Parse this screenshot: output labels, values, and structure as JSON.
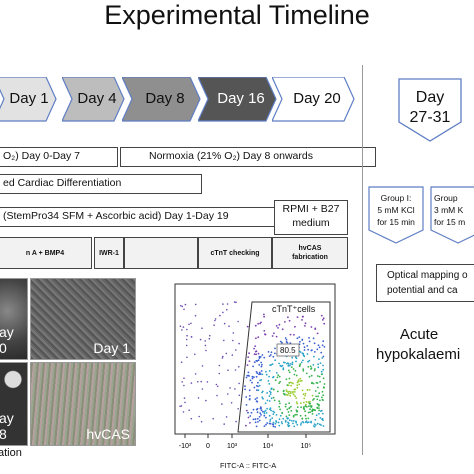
{
  "title": "Experimental Timeline",
  "timeline": [
    {
      "label": "Day 1",
      "fill": "#e2e2e2"
    },
    {
      "label": "Day 4",
      "fill": "#bdbdbd"
    },
    {
      "label": "Day 8",
      "fill": "#8f8f8f"
    },
    {
      "label": "Day 16",
      "fill": "#555555"
    },
    {
      "label": "Day 20",
      "fill": "#ffffff"
    }
  ],
  "bars": {
    "hypoxia": "O₂) Day 0-Day 7",
    "normoxia": "Normoxia (21% O₂) Day 8 onwards",
    "differentiation": "ed Cardiac Differentiation",
    "media": "(StemPro34 SFM + Ascorbic acid) Day 1-Day 19",
    "rpmi_line1": "RPMI + B27",
    "rpmi_line2": "medium"
  },
  "steps": [
    {
      "line1": "n A + BMP4",
      "line2": ""
    },
    {
      "line1": "IWR-1",
      "line2": ""
    },
    {
      "line1": "",
      "line2": ""
    },
    {
      "line1": "cTnT checking",
      "line2": ""
    },
    {
      "line1": "hvCAS",
      "line2": "fabrication"
    }
  ],
  "images": [
    {
      "label": "ay 0"
    },
    {
      "label": "Day 1"
    },
    {
      "label": "ay 8"
    },
    {
      "label": "hvCAS"
    }
  ],
  "images_caption": "ation",
  "flow": {
    "gate_label": "cTnT⁺cells",
    "gate_value": "80.5",
    "xaxis_label": "FITC-A :: FITC-A",
    "ticks": [
      "-10³",
      "0",
      "10³",
      "10⁴",
      "10⁵"
    ]
  },
  "right": {
    "day_line1": "Day",
    "day_line2": "27-31",
    "group1": [
      "Group I:",
      "5 mM KCl",
      "for 15 min"
    ],
    "group2": [
      "Group",
      "3 mM K",
      "for 15 m"
    ],
    "optical": [
      "Optical mapping o",
      "potential and ca"
    ],
    "acute1": "Acute",
    "acute2": "hypokalaemi"
  },
  "colors": {
    "accent": "#5f7ec4",
    "dark_chevron": "#555555"
  }
}
